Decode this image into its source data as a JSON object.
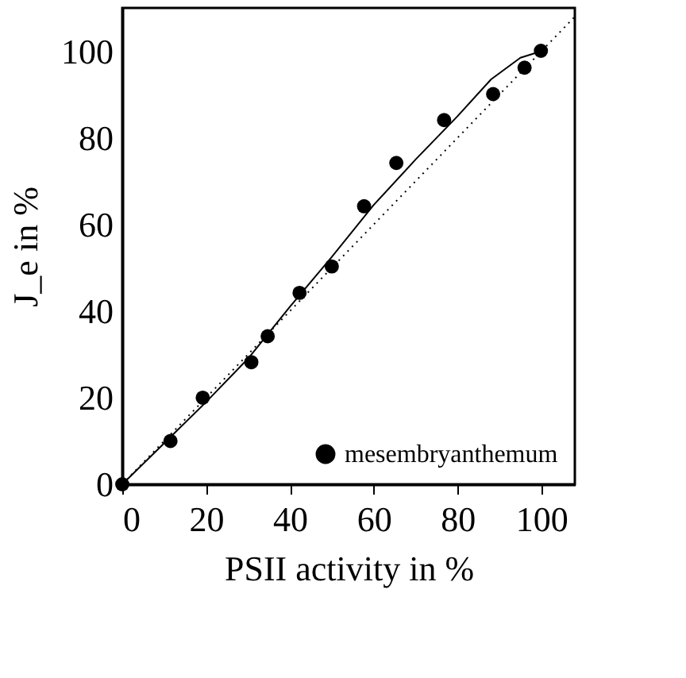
{
  "chart_data": {
    "type": "scatter",
    "xlabel": "PSII activity in %",
    "ylabel": "J_e in %",
    "xlim": [
      0,
      108
    ],
    "ylim": [
      0,
      110
    ],
    "xticks": [
      0,
      20,
      40,
      60,
      80,
      100
    ],
    "yticks": [
      0,
      20,
      40,
      60,
      80,
      100
    ],
    "grid": false,
    "legend": "bottom right",
    "marker": "circle",
    "series": [
      {
        "name": "mesembryanthemum",
        "color": "#000000",
        "x": [
          0,
          11.5,
          19.2,
          30.8,
          34.7,
          42.3,
          50,
          57.7,
          65.4,
          76.8,
          88.5,
          96,
          99.9
        ],
        "values": [
          0,
          10,
          20,
          28.2,
          34.2,
          44.2,
          50.3,
          64.2,
          74.2,
          84.1,
          90.1,
          96.2,
          100.1
        ]
      },
      {
        "type": "line",
        "marker": "none",
        "color": "#000000",
        "line_style": "solid",
        "x": [
          0,
          10,
          20,
          30,
          40,
          50,
          60,
          70,
          80,
          88,
          95,
          100
        ],
        "values": [
          0,
          9.5,
          19,
          29,
          41,
          52.5,
          64.5,
          75,
          85,
          93.5,
          98.5,
          100
        ]
      },
      {
        "type": "line",
        "marker": "none",
        "color": "#000000",
        "line_style": "dotted",
        "x": [
          0,
          108
        ],
        "values": [
          0,
          108
        ]
      }
    ]
  }
}
